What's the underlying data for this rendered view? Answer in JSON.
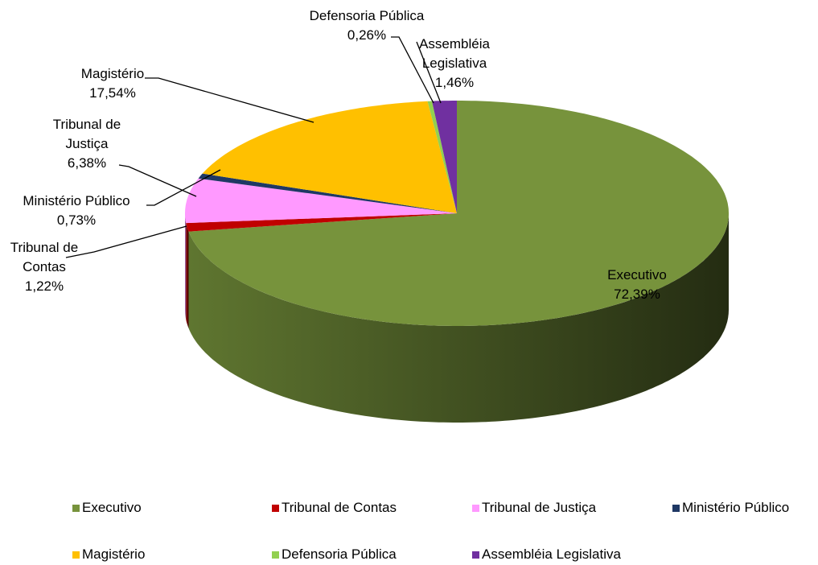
{
  "chart_data": {
    "type": "pie",
    "categories": [
      "Executivo",
      "Tribunal de Contas",
      "Tribunal de Justiça",
      "Ministério Público",
      "Magistério",
      "Defensoria Pública",
      "Assembléia Legislativa"
    ],
    "values": [
      72.39,
      1.22,
      6.38,
      0.73,
      17.54,
      0.26,
      1.46
    ],
    "value_labels": [
      "72,39%",
      "1,22%",
      "6,38%",
      "0,73%",
      "17,54%",
      "0,26%",
      "1,46%"
    ],
    "colors": [
      "#77933c",
      "#c00000",
      "#ff99ff",
      "#1f3864",
      "#ffc000",
      "#92d050",
      "#7030a0"
    ],
    "legend": "bottom"
  }
}
